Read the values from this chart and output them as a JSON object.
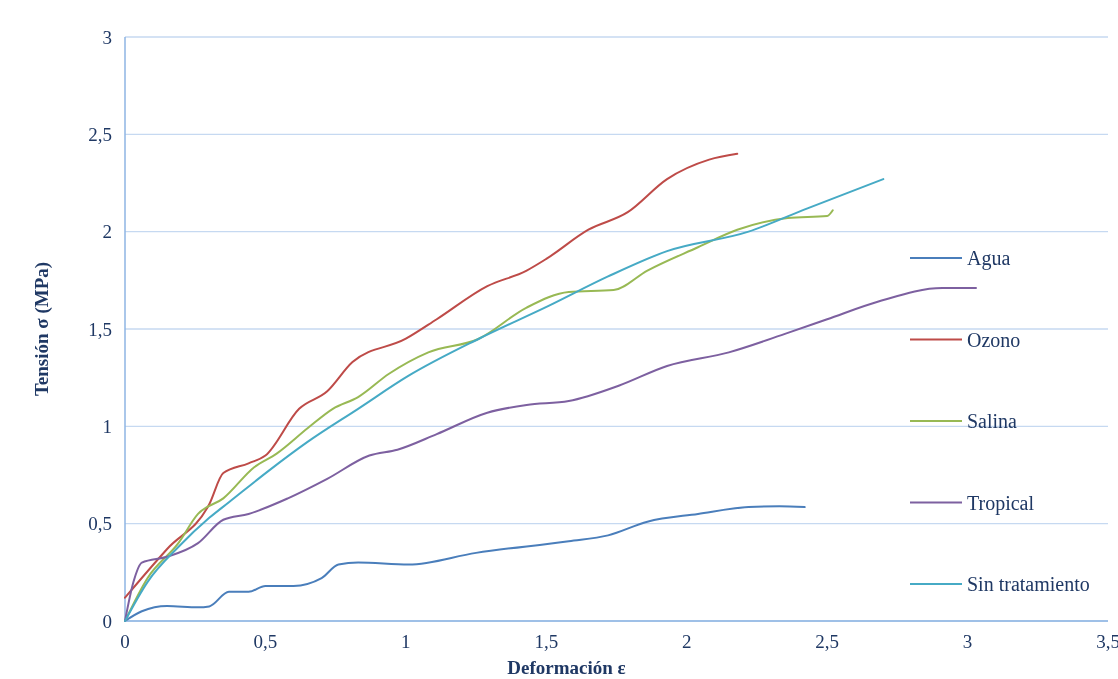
{
  "chart_data": {
    "type": "line",
    "xlabel": "Deformación ε",
    "ylabel": "Tensión σ (MPa)",
    "xlim": [
      0,
      3.5
    ],
    "xticks": [
      {
        "value": 0,
        "label": "0"
      },
      {
        "value": 0.5,
        "label": "0,5"
      },
      {
        "value": 1,
        "label": "1"
      },
      {
        "value": 1.5,
        "label": "1,5"
      },
      {
        "value": 2,
        "label": "2"
      },
      {
        "value": 2.5,
        "label": "2,5"
      },
      {
        "value": 3,
        "label": "3"
      },
      {
        "value": 3.5,
        "label": "3,5"
      }
    ],
    "ylim": [
      0,
      3
    ],
    "yticks": [
      {
        "value": 0,
        "label": "0"
      },
      {
        "value": 0.5,
        "label": "0,5"
      },
      {
        "value": 1,
        "label": "1"
      },
      {
        "value": 1.5,
        "label": "1,5"
      },
      {
        "value": 2,
        "label": "2"
      },
      {
        "value": 2.5,
        "label": "2,5"
      },
      {
        "value": 3,
        "label": "3"
      }
    ],
    "grid": "y",
    "legend": "right",
    "marker": "none",
    "line_style": "solid",
    "series": [
      {
        "name": "Agua",
        "color": "#4a7ebb",
        "x": [
          0,
          0.06,
          0.15,
          0.26,
          0.3,
          0.37,
          0.44,
          0.5,
          0.6,
          0.7,
          0.76,
          0.83,
          1.01,
          1.25,
          1.58,
          1.72,
          1.86,
          2.04,
          2.22,
          2.33,
          2.42
        ],
        "values": [
          0,
          0.05,
          0.077,
          0.07,
          0.075,
          0.15,
          0.15,
          0.18,
          0.18,
          0.22,
          0.29,
          0.3,
          0.29,
          0.35,
          0.41,
          0.44,
          0.51,
          0.55,
          0.585,
          0.59,
          0.585
        ]
      },
      {
        "name": "Ozono",
        "color": "#be4b48",
        "x": [
          0,
          0.15,
          0.3,
          0.35,
          0.44,
          0.5,
          0.62,
          0.72,
          0.81,
          1.0,
          1.11,
          1.29,
          1.43,
          1.5,
          1.65,
          1.79,
          1.93,
          2.08,
          2.18
        ],
        "values": [
          0.12,
          0.37,
          0.6,
          0.76,
          0.81,
          0.85,
          1.09,
          1.18,
          1.33,
          1.45,
          1.55,
          1.72,
          1.8,
          1.86,
          2.01,
          2.1,
          2.27,
          2.37,
          2.4
        ]
      },
      {
        "name": "Salina",
        "color": "#98b954",
        "x": [
          0,
          0.08,
          0.19,
          0.26,
          0.35,
          0.46,
          0.54,
          0.65,
          0.74,
          0.83,
          0.94,
          1.08,
          1.26,
          1.43,
          1.58,
          1.74,
          1.86,
          2.04,
          2.18,
          2.36,
          2.5,
          2.52
        ],
        "values": [
          0,
          0.22,
          0.4,
          0.55,
          0.63,
          0.79,
          0.86,
          0.99,
          1.09,
          1.15,
          1.27,
          1.38,
          1.45,
          1.61,
          1.69,
          1.7,
          1.8,
          1.92,
          2.01,
          2.07,
          2.08,
          2.11
        ]
      },
      {
        "name": "Tropical",
        "color": "#7d60a0",
        "x": [
          0,
          0.03,
          0.06,
          0.15,
          0.26,
          0.35,
          0.44,
          0.58,
          0.72,
          0.87,
          0.97,
          1.11,
          1.29,
          1.43,
          1.58,
          1.76,
          1.93,
          2.15,
          2.36,
          2.5,
          2.68,
          2.91,
          3.03
        ],
        "values": [
          0,
          0.2,
          0.3,
          0.33,
          0.4,
          0.52,
          0.55,
          0.63,
          0.73,
          0.85,
          0.88,
          0.96,
          1.07,
          1.11,
          1.13,
          1.21,
          1.31,
          1.38,
          1.48,
          1.55,
          1.64,
          1.71,
          1.71
        ]
      },
      {
        "name": "Sin tratamiento",
        "color": "#46aac5",
        "x": [
          0,
          0.08,
          0.19,
          0.3,
          0.37,
          0.51,
          0.65,
          0.83,
          1.01,
          1.26,
          1.51,
          1.72,
          1.93,
          2.22,
          2.43,
          2.7
        ],
        "values": [
          0,
          0.2,
          0.38,
          0.53,
          0.61,
          0.77,
          0.92,
          1.09,
          1.26,
          1.45,
          1.62,
          1.77,
          1.9,
          2.0,
          2.12,
          2.27
        ]
      }
    ]
  }
}
